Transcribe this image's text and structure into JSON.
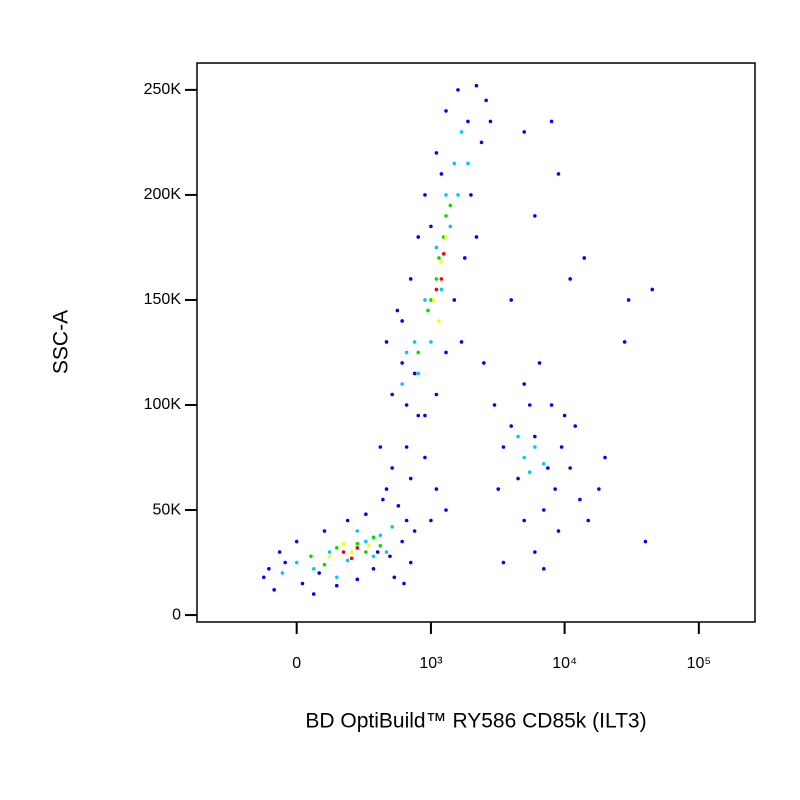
{
  "chart_data": {
    "type": "scatter",
    "x_label": "BD OptiBuild™ RY586 CD85k (ILT3)",
    "y_label": "SSC-A",
    "xscale": "biexponential",
    "xlim": [
      -540,
      262000
    ],
    "ylim": [
      -3300,
      262800
    ],
    "xticks": [
      0,
      {
        "value": 1000,
        "label": "10³"
      },
      {
        "value": 10000,
        "label": "10⁴"
      },
      {
        "value": 100000,
        "label": "10⁵"
      }
    ],
    "yticks": [
      0,
      {
        "value": 50000,
        "label": "50K"
      },
      {
        "value": 100000,
        "label": "100K"
      },
      {
        "value": 150000,
        "label": "150K"
      },
      {
        "value": 200000,
        "label": "200K"
      },
      {
        "value": 250000,
        "label": "250K"
      }
    ],
    "series": [
      {
        "color": "#0000ff",
        "x": [
          -120,
          -80,
          -40,
          20,
          60,
          150,
          250,
          350,
          480,
          600,
          650,
          560,
          420,
          300,
          200,
          100,
          0,
          -60,
          700,
          520,
          380,
          -100,
          80,
          450,
          750,
          620,
          500,
          650,
          800,
          700,
          900,
          1100,
          1300,
          1000,
          400,
          500,
          600,
          450,
          550,
          700,
          800,
          900,
          1100,
          1300,
          1600,
          2200,
          2600,
          2400,
          2000,
          1800,
          1500,
          1300,
          1100,
          900,
          650,
          2800,
          1900,
          1200,
          1000,
          2200,
          1700,
          600,
          750,
          3200,
          4000,
          5000,
          6500,
          8000,
          9500,
          11000,
          13000,
          15000,
          9000,
          7000,
          5000,
          3500,
          4500,
          6000,
          7500,
          10000,
          12000,
          8500,
          5500,
          3000,
          2500,
          6000,
          18000,
          20000,
          5000,
          8000,
          9000,
          6000,
          4000,
          30000,
          28000,
          45000,
          40000,
          7000,
          3500,
          14000,
          11000
        ],
        "y": [
          18000,
          12000,
          25000,
          15000,
          10000,
          14000,
          17000,
          22000,
          28000,
          35000,
          45000,
          52000,
          55000,
          48000,
          45000,
          40000,
          35000,
          30000,
          25000,
          18000,
          30000,
          22000,
          20000,
          60000,
          40000,
          15000,
          70000,
          80000,
          95000,
          65000,
          75000,
          60000,
          50000,
          45000,
          80000,
          105000,
          120000,
          130000,
          145000,
          160000,
          180000,
          200000,
          220000,
          240000,
          250000,
          252000,
          245000,
          225000,
          200000,
          170000,
          150000,
          125000,
          105000,
          95000,
          100000,
          235000,
          235000,
          210000,
          185000,
          180000,
          130000,
          140000,
          115000,
          60000,
          90000,
          110000,
          120000,
          100000,
          80000,
          70000,
          55000,
          45000,
          40000,
          50000,
          45000,
          80000,
          65000,
          85000,
          70000,
          95000,
          90000,
          60000,
          100000,
          100000,
          120000,
          30000,
          60000,
          75000,
          230000,
          235000,
          210000,
          190000,
          150000,
          150000,
          130000,
          155000,
          35000,
          22000,
          25000,
          170000,
          160000
        ]
      },
      {
        "color": "#00c8ff",
        "x": [
          0,
          60,
          120,
          200,
          300,
          400,
          500,
          -50,
          250,
          450,
          150,
          350,
          600,
          750,
          900,
          1100,
          1300,
          1500,
          1700,
          1200,
          1000,
          800,
          1400,
          1900,
          650,
          1600,
          5000,
          6000,
          4500,
          7000,
          5500
        ],
        "y": [
          25000,
          22000,
          30000,
          26000,
          35000,
          38000,
          42000,
          20000,
          40000,
          30000,
          18000,
          28000,
          110000,
          130000,
          150000,
          175000,
          200000,
          215000,
          230000,
          155000,
          130000,
          115000,
          185000,
          215000,
          125000,
          200000,
          75000,
          80000,
          85000,
          72000,
          68000
        ]
      },
      {
        "color": "#00e000",
        "x": [
          50,
          150,
          250,
          350,
          100,
          300,
          400,
          800,
          950,
          1100,
          1250,
          1400,
          1000,
          1150,
          1300
        ],
        "y": [
          28000,
          32000,
          34000,
          37000,
          24000,
          30000,
          33000,
          125000,
          145000,
          160000,
          180000,
          195000,
          150000,
          170000,
          190000
        ]
      },
      {
        "color": "#ffff00",
        "x": [
          120,
          220,
          320,
          180,
          1050,
          1200,
          1300,
          1150
        ],
        "y": [
          28000,
          30000,
          33000,
          34000,
          150000,
          168000,
          180000,
          140000
        ]
      },
      {
        "color": "#ff0000",
        "x": [
          180,
          250,
          220,
          1200,
          1250,
          1100
        ],
        "y": [
          30000,
          32000,
          27000,
          160000,
          172000,
          155000
        ]
      }
    ]
  }
}
